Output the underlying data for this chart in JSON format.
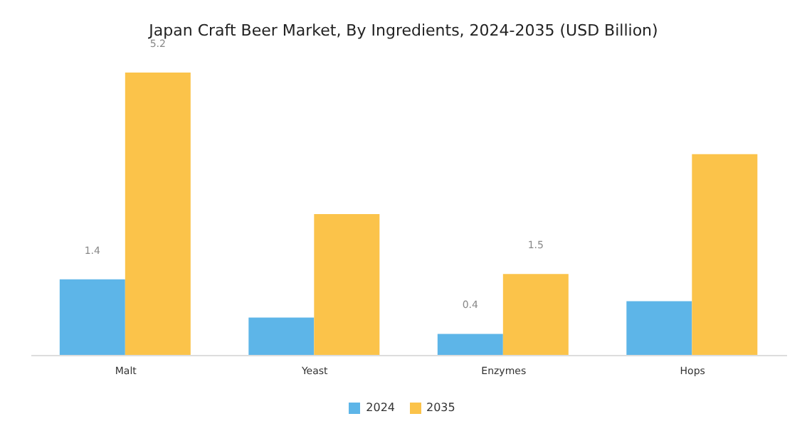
{
  "chart_data": {
    "type": "bar",
    "title": "Japan Craft Beer Market, By Ingredients, 2024-2035 (USD Billion)",
    "categories": [
      "Malt",
      "Yeast",
      "Enzymes",
      "Hops"
    ],
    "series": [
      {
        "name": "2024",
        "color": "#5db5e8",
        "values": [
          1.4,
          0.7,
          0.4,
          1.0
        ],
        "value_labels": [
          "1.4",
          null,
          "0.4",
          null
        ]
      },
      {
        "name": "2035",
        "color": "#fbc34a",
        "values": [
          5.2,
          2.6,
          1.5,
          3.7
        ],
        "value_labels": [
          "5.2",
          null,
          "1.5",
          null
        ]
      }
    ],
    "legend": "bottom",
    "grid": false
  }
}
